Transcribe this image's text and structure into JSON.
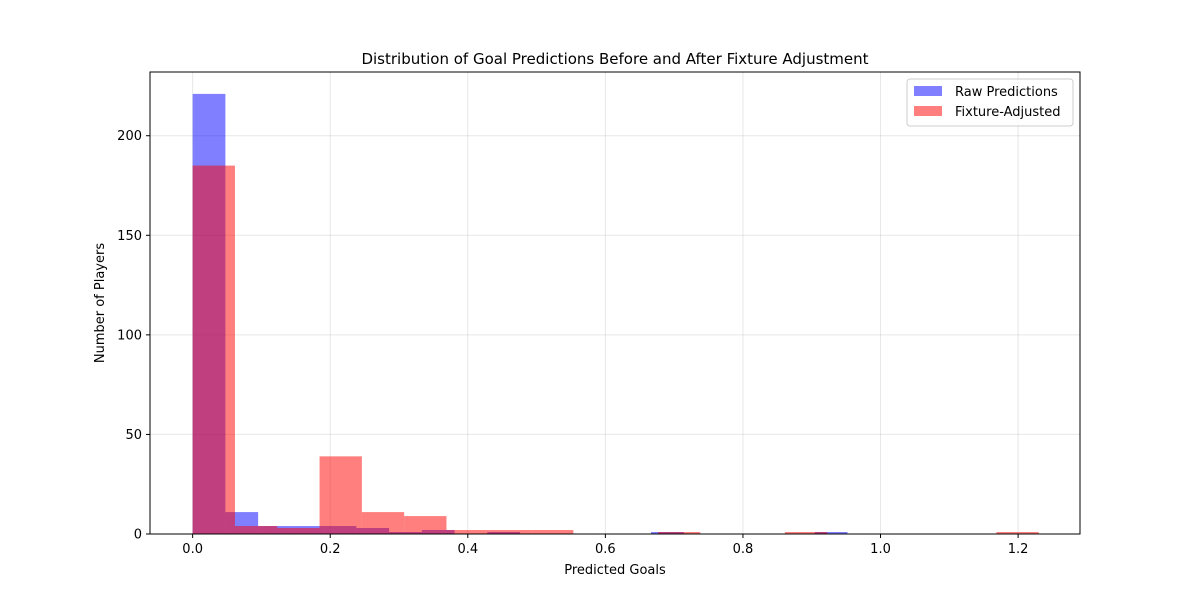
{
  "chart_data": {
    "type": "bar",
    "title": "Distribution of Goal Predictions Before and After Fixture Adjustment",
    "xlabel": "Predicted Goals",
    "ylabel": "Number of Players",
    "xlim": [
      -0.062,
      1.29
    ],
    "ylim": [
      0,
      232
    ],
    "xticks": [
      0.0,
      0.2,
      0.4,
      0.6,
      0.8,
      1.0,
      1.2
    ],
    "xtick_labels": [
      "0.0",
      "0.2",
      "0.4",
      "0.6",
      "0.8",
      "1.0",
      "1.2"
    ],
    "yticks": [
      0,
      50,
      100,
      150,
      200
    ],
    "ytick_labels": [
      "0",
      "50",
      "100",
      "150",
      "200"
    ],
    "grid": true,
    "legend_position": "top-right",
    "series": [
      {
        "name": "Raw Predictions",
        "color": "#0000ff",
        "alpha": 0.5,
        "bin_start": 0.0,
        "bin_width": 0.0476,
        "counts": [
          221,
          11,
          4,
          4,
          4,
          3,
          1,
          2,
          0,
          1,
          0,
          0,
          0,
          0,
          1,
          0,
          0,
          0,
          0,
          1
        ]
      },
      {
        "name": "Fixture-Adjusted",
        "color": "#ff0000",
        "alpha": 0.5,
        "bin_start": 0.0,
        "bin_width": 0.0615,
        "counts": [
          185,
          4,
          3,
          39,
          11,
          9,
          2,
          2,
          2,
          0,
          0,
          1,
          0,
          0,
          1,
          0,
          0,
          0,
          0,
          1
        ]
      }
    ]
  }
}
